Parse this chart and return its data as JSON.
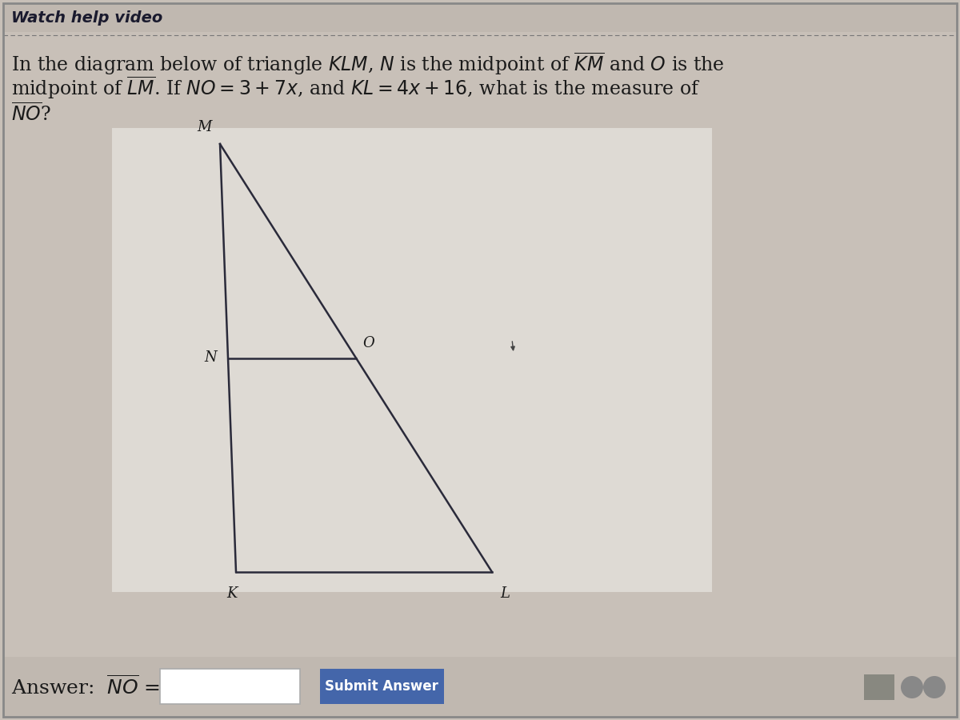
{
  "bg_color": "#c8c0b8",
  "diagram_bg_color": "#e8e4de",
  "header_text": "Watch help video",
  "header_font_color": "#1a1a2e",
  "line_color": "#2a2a3a",
  "line_width": 1.8,
  "text_color": "#1a1a1a",
  "submit_button_color": "#4466aa",
  "submit_button_text_color": "#ffffff",
  "font_size_problem": 17,
  "font_size_labels": 13,
  "triangle": {
    "M": [
      0.27,
      0.86
    ],
    "K": [
      0.28,
      0.22
    ],
    "L": [
      0.58,
      0.22
    ]
  },
  "N": [
    0.275,
    0.54
  ],
  "O": [
    0.425,
    0.54
  ]
}
